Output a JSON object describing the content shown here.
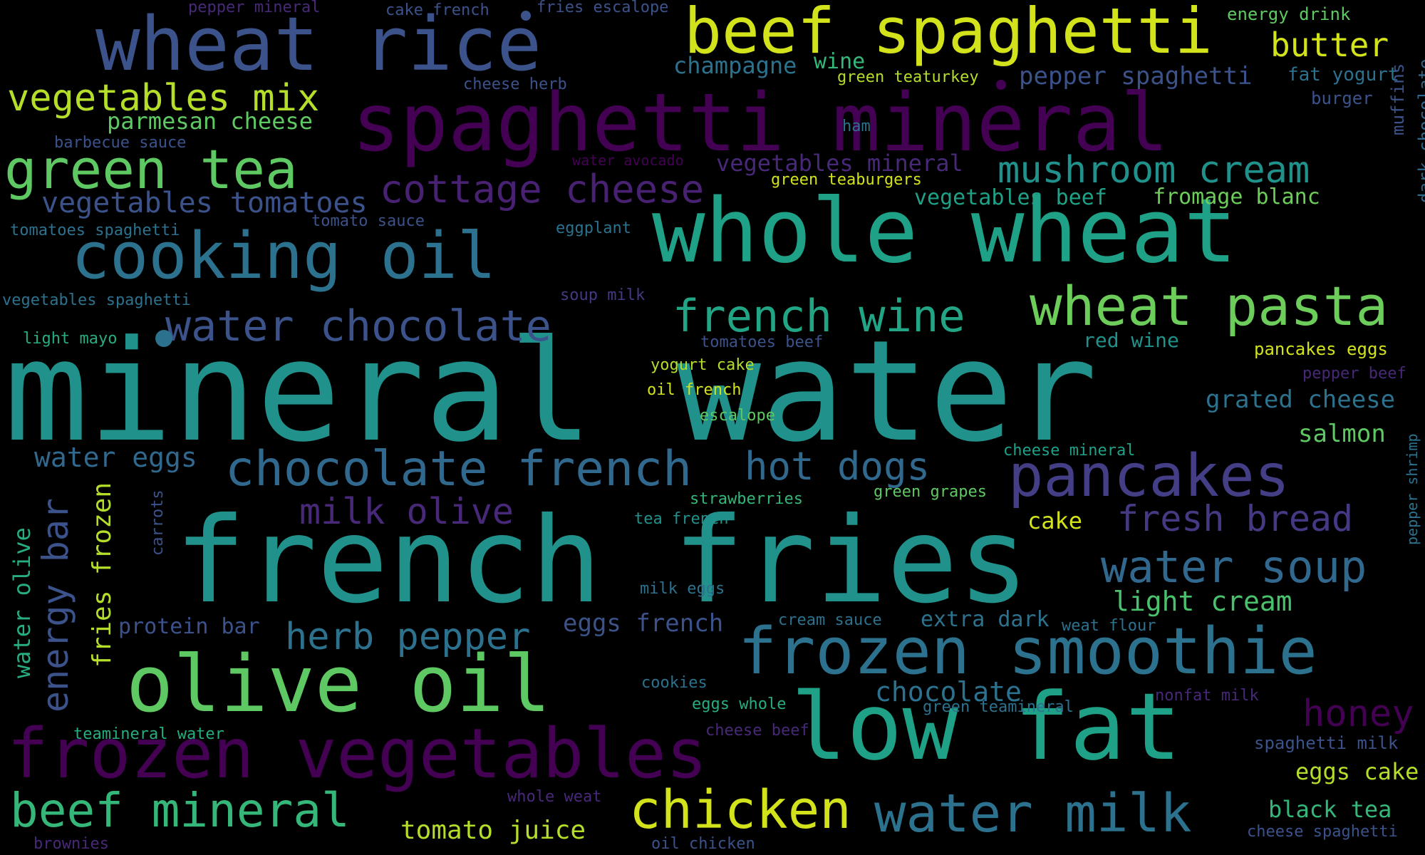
{
  "palette": [
    "#440154",
    "#482878",
    "#3e4989",
    "#31688e",
    "#26828e",
    "#1f9e89",
    "#35b779",
    "#6ece58",
    "#b5de2b",
    "#fde725"
  ],
  "words": [
    {
      "text": "mineral water",
      "color": "#21918c"
    },
    {
      "text": "french fries",
      "color": "#21918c"
    },
    {
      "text": "whole wheat",
      "color": "#1fa187"
    },
    {
      "text": "low fat",
      "color": "#1fa187"
    },
    {
      "text": "spaghetti mineral",
      "color": "#440154"
    },
    {
      "text": "olive oil",
      "color": "#5ec962"
    },
    {
      "text": "frozen vegetables",
      "color": "#440154"
    },
    {
      "text": "wheat rice",
      "color": "#3b528b"
    },
    {
      "text": "beef spaghetti",
      "color": "#d2e21b"
    },
    {
      "text": "frozen smoothie",
      "color": "#2c728e"
    },
    {
      "text": "cooking oil",
      "color": "#2c728e"
    },
    {
      "text": "pancakes",
      "color": "#433e85"
    },
    {
      "text": "green tea",
      "color": "#5ec962"
    },
    {
      "text": "wheat pasta",
      "color": "#6ccd5a"
    },
    {
      "text": "water milk",
      "color": "#2c728e"
    },
    {
      "text": "chocolate french",
      "color": "#31688e"
    },
    {
      "text": "chicken",
      "color": "#d2e21b"
    },
    {
      "text": "beef mineral",
      "color": "#35b779"
    },
    {
      "text": "water soup",
      "color": "#31688e"
    },
    {
      "text": "water chocolate",
      "color": "#3b528b"
    },
    {
      "text": "vegetables mix",
      "color": "#b5de2b"
    },
    {
      "text": "french wine",
      "color": "#21a585"
    },
    {
      "text": "mushroom cream",
      "color": "#21918c"
    },
    {
      "text": "cottage cheese",
      "color": "#482173"
    },
    {
      "text": "hot dogs",
      "color": "#31688e"
    },
    {
      "text": "fresh bread",
      "color": "#443983"
    },
    {
      "text": "herb pepper",
      "color": "#2c728e"
    },
    {
      "text": "honey",
      "color": "#440154"
    },
    {
      "text": "milk olive",
      "color": "#482878"
    },
    {
      "text": "vegetables tomatoes",
      "color": "#3b528b"
    },
    {
      "text": "energy bar",
      "color": "#3b528b"
    },
    {
      "text": "butter",
      "color": "#d2e21b"
    },
    {
      "text": "chocolate",
      "color": "#2c728e"
    },
    {
      "text": "light cream",
      "color": "#4ac16d"
    },
    {
      "text": "water eggs",
      "color": "#31688e"
    },
    {
      "text": "grated cheese",
      "color": "#2c728e"
    },
    {
      "text": "tomato juice",
      "color": "#b5de2b"
    },
    {
      "text": "parmesan cheese",
      "color": "#5ec962"
    },
    {
      "text": "pepper spaghetti",
      "color": "#3b528b"
    },
    {
      "text": "fries frozen",
      "color": "#b5de2b"
    },
    {
      "text": "eggs french",
      "color": "#3b528b"
    },
    {
      "text": "black tea",
      "color": "#35b779"
    },
    {
      "text": "salmon",
      "color": "#5ec962"
    },
    {
      "text": "eggs cake",
      "color": "#b5de2b"
    },
    {
      "text": "water olive",
      "color": "#26ad81"
    },
    {
      "text": "protein bar",
      "color": "#3b528b"
    },
    {
      "text": "vegetables mineral",
      "color": "#482878"
    },
    {
      "text": "vegetables beef",
      "color": "#1fa187"
    },
    {
      "text": "fromage blanc",
      "color": "#6ccd5a"
    },
    {
      "text": "champagne",
      "color": "#2c728e"
    },
    {
      "text": "extra dark",
      "color": "#2c728e"
    },
    {
      "text": "cake",
      "color": "#d2e21b"
    },
    {
      "text": "wine",
      "color": "#35b779"
    },
    {
      "text": "fat yogurt",
      "color": "#2c728e"
    },
    {
      "text": "red wine",
      "color": "#21918c"
    },
    {
      "text": "spaghetti milk",
      "color": "#3b528b"
    },
    {
      "text": "energy drink",
      "color": "#5ec962"
    },
    {
      "text": "muffins",
      "color": "#3b528b"
    },
    {
      "text": "dark chocolate",
      "color": "#31688e"
    },
    {
      "text": "pancakes eggs",
      "color": "#d2e21b"
    },
    {
      "text": "burger",
      "color": "#3b528b"
    },
    {
      "text": "carrots",
      "color": "#3b528b"
    },
    {
      "text": "pepper shrimp",
      "color": "#2c728e"
    },
    {
      "text": "barbecue sauce",
      "color": "#3b528b"
    },
    {
      "text": "cheese mineral",
      "color": "#1fa187"
    },
    {
      "text": "cheese spaghetti",
      "color": "#3b528b"
    },
    {
      "text": "green teaturkey",
      "color": "#b5de2b"
    },
    {
      "text": "green teaburgers",
      "color": "#d2e21b"
    },
    {
      "text": "green teamineral",
      "color": "#2c728e"
    },
    {
      "text": "teamineral water",
      "color": "#26ad81"
    },
    {
      "text": "cheese herb",
      "color": "#3b528b"
    },
    {
      "text": "vegetables spaghetti",
      "color": "#2c728e"
    },
    {
      "text": "tomatoes spaghetti",
      "color": "#2c728e"
    },
    {
      "text": "tomato sauce",
      "color": "#3b528b"
    },
    {
      "text": "eggplant",
      "color": "#2c728e"
    },
    {
      "text": "soup milk",
      "color": "#443983"
    },
    {
      "text": "light mayo",
      "color": "#26ad81"
    },
    {
      "text": "tomatoes beef",
      "color": "#3b528b"
    },
    {
      "text": "yogurt cake",
      "color": "#b5de2b"
    },
    {
      "text": "oil french",
      "color": "#d2e21b"
    },
    {
      "text": "escalope",
      "color": "#5ec962"
    },
    {
      "text": "strawberries",
      "color": "#35b779"
    },
    {
      "text": "green grapes",
      "color": "#5ec962"
    },
    {
      "text": "tea french",
      "color": "#21918c"
    },
    {
      "text": "milk eggs",
      "color": "#2c728e"
    },
    {
      "text": "cream sauce",
      "color": "#2c728e"
    },
    {
      "text": "weat flour",
      "color": "#2c728e"
    },
    {
      "text": "cookies",
      "color": "#2c728e"
    },
    {
      "text": "eggs whole",
      "color": "#26ad81"
    },
    {
      "text": "cheese beef",
      "color": "#482878"
    },
    {
      "text": "nonfat milk",
      "color": "#482878"
    },
    {
      "text": "pepper beef",
      "color": "#482878"
    },
    {
      "text": "whole weat",
      "color": "#482878"
    },
    {
      "text": "brownies",
      "color": "#482878"
    },
    {
      "text": "oil chicken",
      "color": "#3b528b"
    },
    {
      "text": "water avocado",
      "color": "#440154"
    },
    {
      "text": "ham",
      "color": "#2c728e"
    },
    {
      "text": "pepper mineral",
      "color": "#482878"
    },
    {
      "text": "cake french",
      "color": "#3b528b"
    },
    {
      "text": "fries escalope",
      "color": "#3b528b"
    }
  ]
}
